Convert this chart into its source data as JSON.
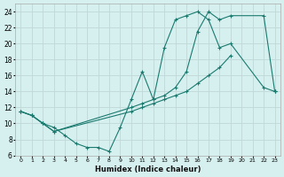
{
  "xlabel": "Humidex (Indice chaleur)",
  "bg_color": "#d6f0f0",
  "grid_color": "#c0d8d8",
  "line_color": "#1a7a6e",
  "xlim": [
    -0.5,
    23.5
  ],
  "ylim": [
    6,
    25
  ],
  "xticks": [
    0,
    1,
    2,
    3,
    4,
    5,
    6,
    7,
    8,
    9,
    10,
    11,
    12,
    13,
    14,
    15,
    16,
    17,
    18,
    19,
    20,
    21,
    22,
    23
  ],
  "yticks": [
    6,
    8,
    10,
    12,
    14,
    16,
    18,
    20,
    22,
    24
  ],
  "line1_x": [
    0,
    1,
    2,
    3,
    4,
    5,
    6,
    7,
    8,
    9,
    10,
    11,
    12,
    13,
    14,
    15,
    16,
    17,
    18,
    19,
    22,
    23
  ],
  "line1_y": [
    11.5,
    11.0,
    10.0,
    9.5,
    8.5,
    7.5,
    7.0,
    7.0,
    6.5,
    9.5,
    13.0,
    16.5,
    13.0,
    19.5,
    23.0,
    23.5,
    24.0,
    23.0,
    19.5,
    20.0,
    14.5,
    14.0
  ],
  "line2_x": [
    0,
    1,
    2,
    3,
    10,
    11,
    12,
    13,
    14,
    15,
    16,
    17,
    18,
    19,
    22,
    23
  ],
  "line2_y": [
    11.5,
    11.0,
    10.0,
    9.0,
    12.0,
    12.5,
    13.0,
    13.5,
    14.5,
    16.5,
    21.5,
    24.0,
    23.0,
    23.5,
    23.5,
    14.0
  ],
  "line3_x": [
    0,
    1,
    2,
    3,
    10,
    11,
    12,
    13,
    14,
    15,
    16,
    17,
    18,
    19,
    20,
    21,
    22,
    23
  ],
  "line3_y": [
    11.5,
    11.0,
    10.0,
    9.0,
    11.5,
    12.0,
    12.5,
    13.0,
    13.5,
    14.0,
    15.0,
    16.0,
    17.0,
    18.5,
    null,
    null,
    null,
    14.0
  ]
}
